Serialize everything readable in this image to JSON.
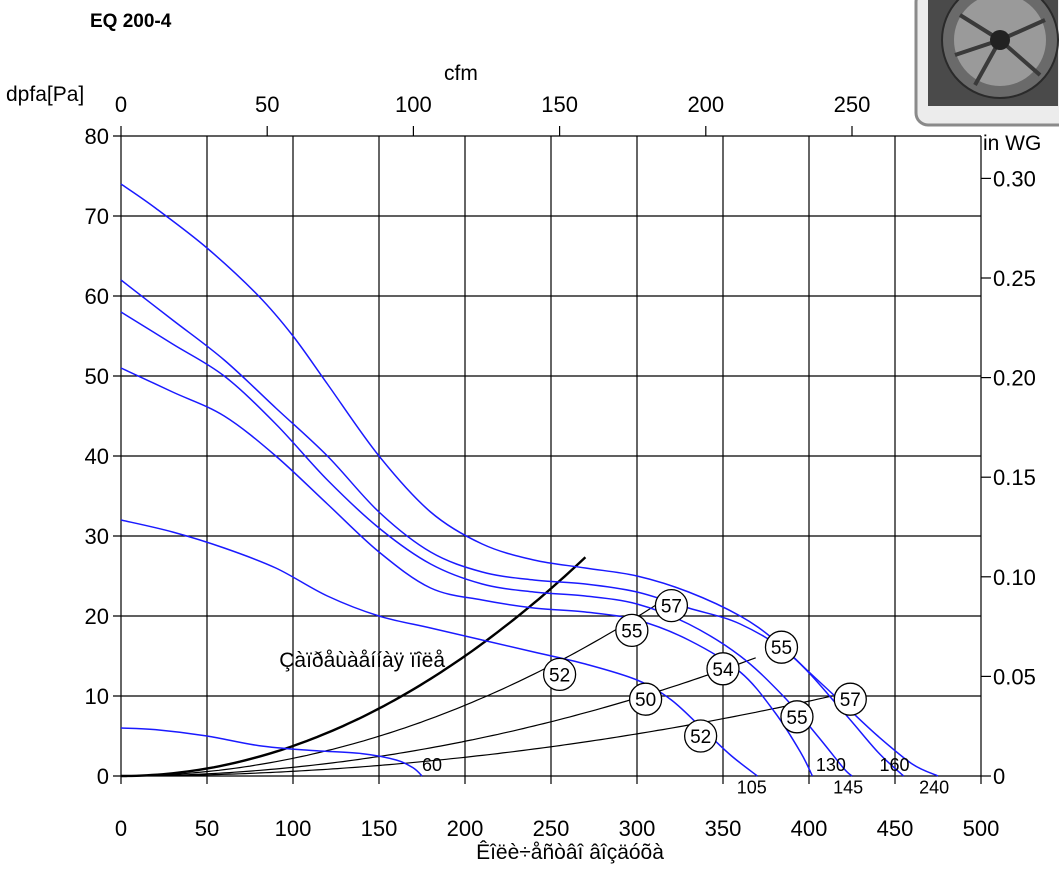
{
  "chart_data": {
    "type": "line",
    "title": "EQ 200-4",
    "xlabel": "Êîëè÷åñòâî âîçäóõà",
    "ylabel": "dpfa[Pa]",
    "x2label": "cfm",
    "y2label": "in WG",
    "xlim": [
      0,
      500
    ],
    "ylim": [
      0,
      80
    ],
    "x_ticks": [
      "0",
      "50",
      "100",
      "150",
      "200",
      "250",
      "300",
      "350",
      "400",
      "450",
      "500"
    ],
    "y_ticks": [
      "0",
      "10",
      "20",
      "30",
      "40",
      "50",
      "60",
      "70",
      "80"
    ],
    "x2_ticks": [
      {
        "label": "0",
        "value": 0
      },
      {
        "label": "50",
        "value": 85
      },
      {
        "label": "100",
        "value": 170
      },
      {
        "label": "150",
        "value": 255
      },
      {
        "label": "200",
        "value": 340
      },
      {
        "label": "250",
        "value": 425
      }
    ],
    "y2_ticks": [
      {
        "label": "0",
        "value": 0
      },
      {
        "label": "0.05",
        "value": 12.45
      },
      {
        "label": "0.10",
        "value": 24.9
      },
      {
        "label": "0.15",
        "value": 37.35
      },
      {
        "label": "0.20",
        "value": 49.8
      },
      {
        "label": "0.25",
        "value": 62.25
      },
      {
        "label": "0.30",
        "value": 74.7
      }
    ],
    "grid": true,
    "fan_colors": {
      "fan_curves": "#1a1aff",
      "system_curves": "#000000",
      "bold_system_curve": "#000000"
    },
    "fan_curves": [
      {
        "end_label": "240",
        "points": [
          [
            0,
            74
          ],
          [
            20,
            71
          ],
          [
            50,
            66
          ],
          [
            80,
            60
          ],
          [
            100,
            55
          ],
          [
            120,
            49
          ],
          [
            150,
            40
          ],
          [
            180,
            33
          ],
          [
            210,
            29
          ],
          [
            240,
            27
          ],
          [
            270,
            26
          ],
          [
            300,
            25
          ],
          [
            330,
            23
          ],
          [
            360,
            20
          ],
          [
            380,
            17
          ],
          [
            400,
            13
          ],
          [
            420,
            9
          ],
          [
            440,
            5
          ],
          [
            460,
            1.5
          ],
          [
            475,
            0
          ]
        ]
      },
      {
        "end_label": "160",
        "points": [
          [
            0,
            62
          ],
          [
            30,
            57
          ],
          [
            60,
            52
          ],
          [
            90,
            46
          ],
          [
            120,
            40
          ],
          [
            150,
            33
          ],
          [
            180,
            28
          ],
          [
            210,
            25.5
          ],
          [
            240,
            24.5
          ],
          [
            270,
            24
          ],
          [
            300,
            23
          ],
          [
            330,
            21
          ],
          [
            360,
            19
          ],
          [
            390,
            15
          ],
          [
            420,
            8
          ],
          [
            440,
            3
          ],
          [
            455,
            0
          ]
        ]
      },
      {
        "end_label": "145",
        "points": [
          [
            0,
            58
          ],
          [
            30,
            54
          ],
          [
            60,
            50
          ],
          [
            90,
            44
          ],
          [
            120,
            37
          ],
          [
            150,
            31
          ],
          [
            180,
            26.5
          ],
          [
            210,
            24
          ],
          [
            240,
            23
          ],
          [
            270,
            22.5
          ],
          [
            300,
            21.5
          ],
          [
            330,
            19
          ],
          [
            360,
            15
          ],
          [
            385,
            10
          ],
          [
            405,
            5
          ],
          [
            420,
            1
          ],
          [
            425,
            0
          ]
        ]
      },
      {
        "end_label": "130",
        "points": [
          [
            0,
            51
          ],
          [
            30,
            48
          ],
          [
            60,
            45
          ],
          [
            90,
            40
          ],
          [
            120,
            34
          ],
          [
            150,
            28
          ],
          [
            180,
            23.5
          ],
          [
            210,
            22
          ],
          [
            240,
            21
          ],
          [
            270,
            20.5
          ],
          [
            300,
            19.5
          ],
          [
            330,
            17
          ],
          [
            360,
            13
          ],
          [
            380,
            8
          ],
          [
            395,
            3
          ],
          [
            402,
            0
          ]
        ]
      },
      {
        "end_label": "105",
        "points": [
          [
            0,
            32
          ],
          [
            30,
            30.5
          ],
          [
            60,
            28.5
          ],
          [
            90,
            26
          ],
          [
            120,
            22.5
          ],
          [
            150,
            20
          ],
          [
            180,
            18.5
          ],
          [
            210,
            17
          ],
          [
            240,
            15.5
          ],
          [
            270,
            14
          ],
          [
            300,
            12
          ],
          [
            320,
            9.5
          ],
          [
            340,
            5.5
          ],
          [
            355,
            2.5
          ],
          [
            370,
            0
          ]
        ]
      },
      {
        "end_label": "60",
        "points": [
          [
            0,
            6
          ],
          [
            20,
            5.8
          ],
          [
            50,
            5
          ],
          [
            80,
            3.8
          ],
          [
            110,
            3.2
          ],
          [
            140,
            2.8
          ],
          [
            160,
            2
          ],
          [
            170,
            1
          ],
          [
            175,
            0
          ]
        ]
      }
    ],
    "system_curves": [
      {
        "label": "Çàïðåùàåííàÿ ïîëå",
        "bold": true,
        "k": 0.000375,
        "x_max": 270
      },
      {
        "k": 0.000221,
        "x_max": 318
      },
      {
        "k": 0.0001085,
        "x_max": 370
      },
      {
        "k": 5.85e-05,
        "x_max": 420
      }
    ],
    "noise_badges": [
      {
        "label": "57",
        "x": 320,
        "y": 21.3
      },
      {
        "label": "55",
        "x": 297,
        "y": 18.2
      },
      {
        "label": "52",
        "x": 255,
        "y": 12.7
      },
      {
        "label": "50",
        "x": 305,
        "y": 9.6
      },
      {
        "label": "52",
        "x": 337,
        "y": 5.0
      },
      {
        "label": "54",
        "x": 350,
        "y": 13.4
      },
      {
        "label": "55",
        "x": 384,
        "y": 16.1
      },
      {
        "label": "55",
        "x": 393,
        "y": 7.4
      },
      {
        "label": "57",
        "x": 424,
        "y": 9.6
      }
    ],
    "curve_end_labels": [
      {
        "label": "60",
        "x": 175,
        "y": 1.5
      },
      {
        "label": "105",
        "x": 358,
        "y": -1.3
      },
      {
        "label": "130",
        "x": 404,
        "y": 1.5
      },
      {
        "label": "145",
        "x": 414,
        "y": -1.3
      },
      {
        "label": "160",
        "x": 441,
        "y": 1.5
      },
      {
        "label": "240",
        "x": 464,
        "y": -1.3
      }
    ]
  }
}
